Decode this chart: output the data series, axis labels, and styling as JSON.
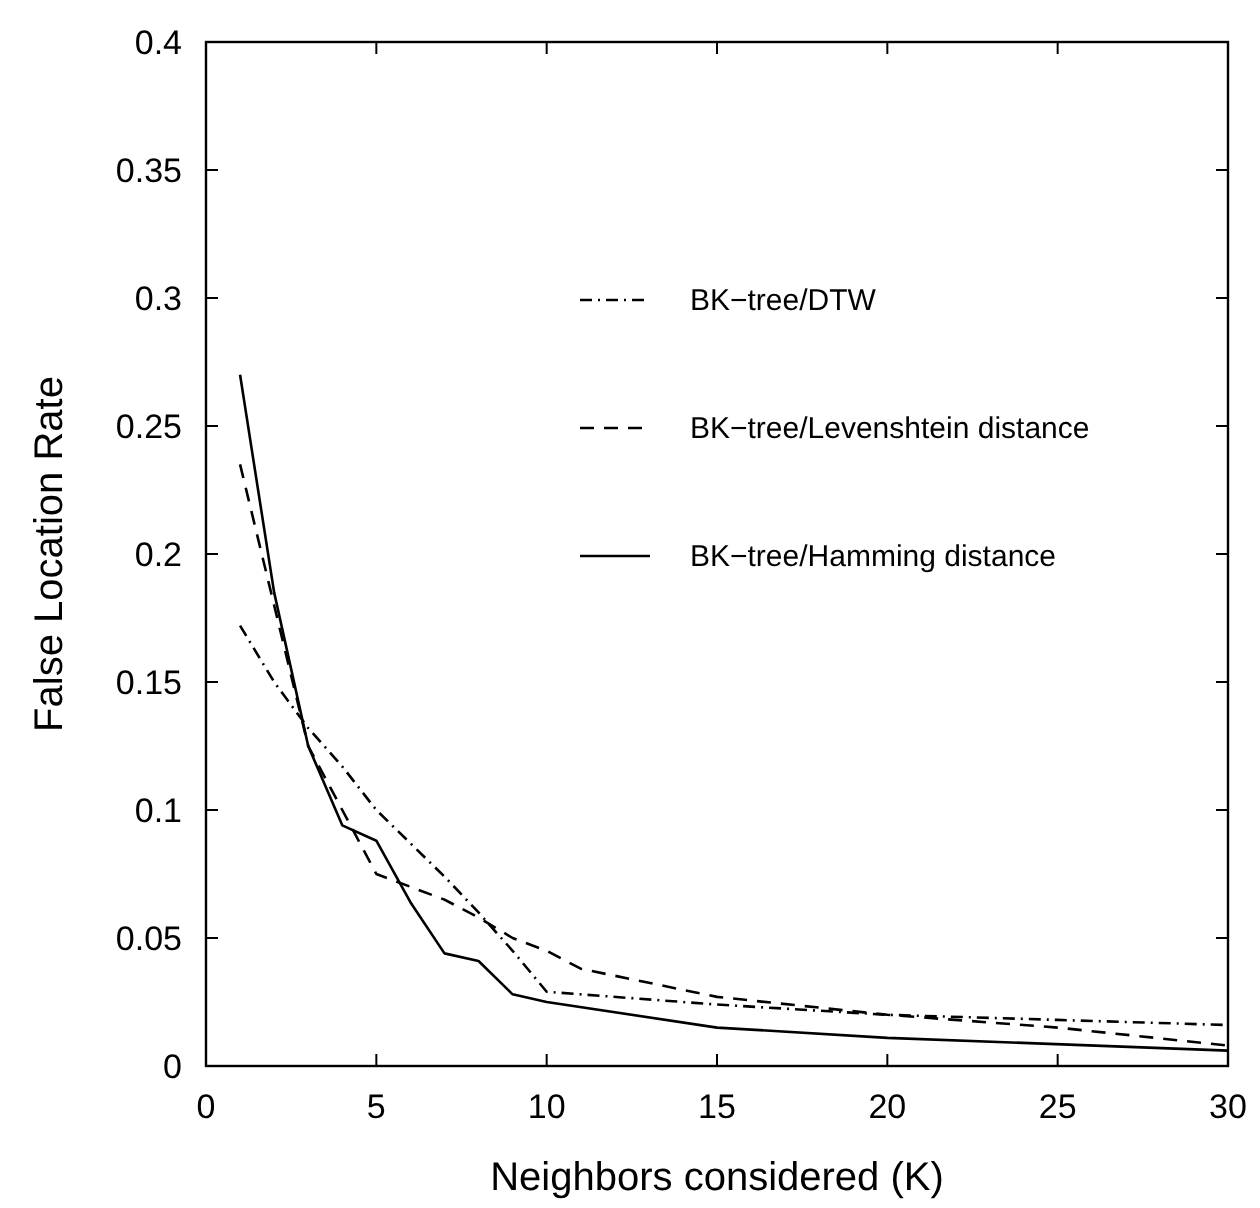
{
  "chart_data": {
    "type": "line",
    "xlabel": "Neighbors considered (K)",
    "ylabel": "False Location Rate",
    "xlim": [
      0,
      30
    ],
    "xticks": [
      0,
      5,
      10,
      15,
      20,
      25,
      30
    ],
    "ylim": [
      0,
      0.4
    ],
    "yticks": [
      0,
      0.05,
      0.1,
      0.15,
      0.2,
      0.25,
      0.3,
      0.35,
      0.4
    ],
    "grid": false,
    "legend": "right",
    "series": [
      {
        "name": "BK−tree/DTW",
        "color": "#000000",
        "line_style": "dashdot",
        "x": [
          1,
          2,
          3,
          4,
          5,
          6,
          7,
          8,
          9,
          10,
          15,
          20,
          25,
          30
        ],
        "values": [
          0.172,
          0.15,
          0.132,
          0.117,
          0.1,
          0.087,
          0.074,
          0.06,
          0.045,
          0.029,
          0.024,
          0.02,
          0.018,
          0.016
        ]
      },
      {
        "name": "BK−tree/Levenshtein distance",
        "color": "#000000",
        "line_style": "dashed",
        "x": [
          1,
          2,
          3,
          4,
          5,
          6,
          7,
          8,
          9,
          10,
          11,
          15,
          20,
          25,
          30
        ],
        "values": [
          0.235,
          0.18,
          0.125,
          0.1,
          0.075,
          0.07,
          0.065,
          0.058,
          0.05,
          0.045,
          0.038,
          0.027,
          0.02,
          0.015,
          0.008
        ]
      },
      {
        "name": "BK−tree/Hamming distance",
        "color": "#000000",
        "line_style": "solid",
        "x": [
          1,
          2,
          3,
          4,
          5,
          6,
          7,
          8,
          9,
          10,
          15,
          20,
          30
        ],
        "values": [
          0.27,
          0.185,
          0.125,
          0.094,
          0.088,
          0.064,
          0.044,
          0.041,
          0.028,
          0.025,
          0.015,
          0.011,
          0.006
        ]
      }
    ]
  }
}
